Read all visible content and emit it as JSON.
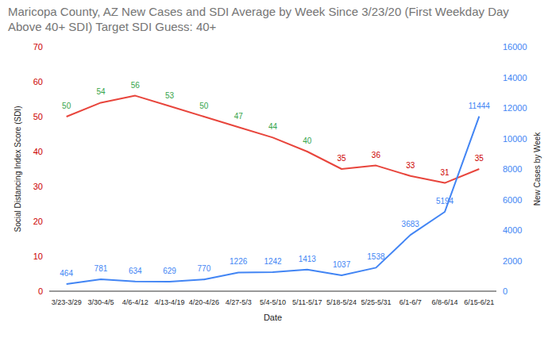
{
  "chart_data": {
    "type": "line",
    "title": "Maricopa County, AZ New Cases and SDI Average by Week Since 3/23/20 (First Weekday Day Above 40+ SDI) Target SDI Guess: 40+",
    "x_label": "Date",
    "y_label": "Social Distancing Index Score (SDI)",
    "y2_label": "New Cases by Week",
    "categories": [
      "3/23-3/29",
      "3/30-4/5",
      "4/6-4/12",
      "4/13-4/19",
      "4/20-4/26",
      "4/27-5/3",
      "5/4-5/10",
      "5/11-5/17",
      "5/18-5/24",
      "5/25-5/31",
      "6/1-6/7",
      "6/8-6/14",
      "6/15-6/21"
    ],
    "series": [
      {
        "color": "#e8453c",
        "values": [
          50,
          54,
          56,
          53,
          50,
          47,
          44,
          40,
          35,
          36,
          33,
          31,
          35
        ],
        "colors": [
          "#34a44a",
          "#34a44a",
          "#34a44a",
          "#34a44a",
          "#34a44a",
          "#34a44a",
          "#34a44a",
          "#34a44a",
          "#cc0000",
          "#cc0000",
          "#cc0000",
          "#cc0000",
          "#cc0000"
        ]
      },
      {
        "color": "#4285f4",
        "axis": "y2",
        "values": [
          464,
          781,
          634,
          629,
          770,
          1226,
          1242,
          1413,
          1037,
          1538,
          3683,
          5194,
          11444
        ]
      }
    ],
    "ylim": [
      0,
      70
    ],
    "yticks": [
      0,
      10,
      20,
      30,
      40,
      50,
      60,
      70
    ],
    "y2lim": [
      0,
      16000
    ],
    "y2ticks": [
      0,
      2000,
      4000,
      6000,
      8000,
      10000,
      12000,
      14000,
      16000
    ],
    "grid": false,
    "data_labels": true
  }
}
